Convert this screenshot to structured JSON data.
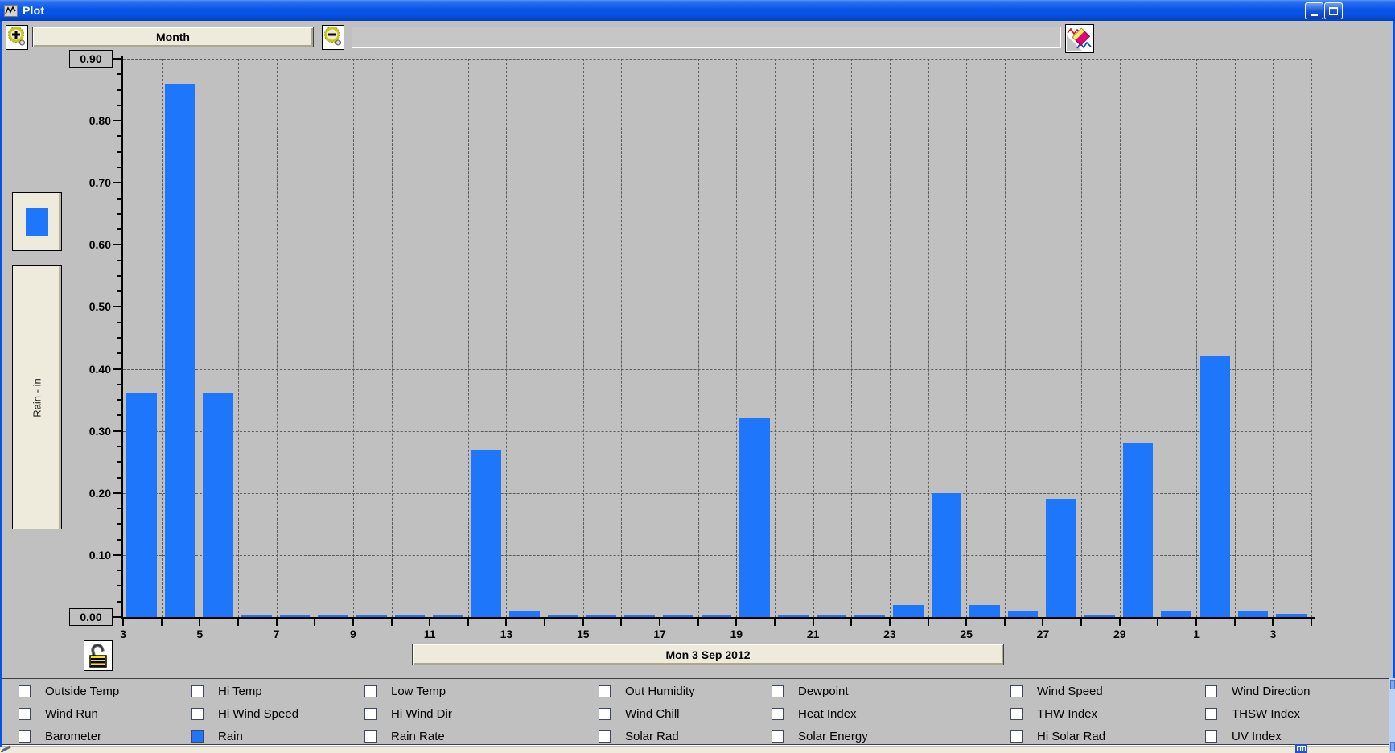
{
  "window": {
    "title": "Plot"
  },
  "toolbar": {
    "month_label": "Month",
    "span_value": "",
    "zoom_in_icon": "magnifier-plus",
    "zoom_out_icon": "magnifier-minus",
    "erase_icon": "eraser"
  },
  "chart_data": {
    "type": "bar",
    "title": "",
    "ylabel": "Rain - in",
    "xlabel": "",
    "period": "Month",
    "date_label": "Mon 3 Sep 2012",
    "ylim": [
      0,
      0.9
    ],
    "grid": true,
    "series_color": "#1E77FB",
    "y_ticks": [
      "0.90",
      "0.80",
      "0.70",
      "0.60",
      "0.50",
      "0.40",
      "0.30",
      "0.20",
      "0.10",
      "0.00"
    ],
    "categories": [
      "3",
      "4",
      "5",
      "6",
      "7",
      "8",
      "9",
      "10",
      "11",
      "12",
      "13",
      "14",
      "15",
      "16",
      "17",
      "18",
      "19",
      "20",
      "21",
      "22",
      "23",
      "24",
      "25",
      "26",
      "27",
      "28",
      "29",
      "30",
      "1",
      "2",
      "3"
    ],
    "values": [
      0.36,
      0.86,
      0.36,
      0,
      0,
      0,
      0,
      0,
      0,
      0.27,
      0.01,
      0,
      0,
      0,
      0,
      0,
      0.32,
      0,
      0,
      0,
      0.02,
      0.2,
      0.02,
      0.01,
      0.19,
      0,
      0.28,
      0.01,
      0.42,
      0.01,
      0.005
    ],
    "x_tick_labels": [
      "3",
      "5",
      "7",
      "9",
      "11",
      "13",
      "15",
      "17",
      "19",
      "21",
      "23",
      "25",
      "27",
      "29",
      "1",
      "3"
    ],
    "legend": [
      {
        "name": "Rain",
        "color": "#1E77FB"
      }
    ]
  },
  "checkboxes": {
    "items": [
      {
        "label": "Outside Temp",
        "checked": false
      },
      {
        "label": "Hi Temp",
        "checked": false
      },
      {
        "label": "Low Temp",
        "checked": false
      },
      {
        "label": "Out Humidity",
        "checked": false
      },
      {
        "label": "Dewpoint",
        "checked": false
      },
      {
        "label": "Wind Speed",
        "checked": false
      },
      {
        "label": "Wind Direction",
        "checked": false
      },
      {
        "label": "Wind Run",
        "checked": false
      },
      {
        "label": "Hi Wind Speed",
        "checked": false
      },
      {
        "label": "Hi Wind Dir",
        "checked": false
      },
      {
        "label": "Wind Chill",
        "checked": false
      },
      {
        "label": "Heat Index",
        "checked": false
      },
      {
        "label": "THW Index",
        "checked": false
      },
      {
        "label": "THSW Index",
        "checked": false
      },
      {
        "label": "Barometer",
        "checked": false
      },
      {
        "label": "Rain",
        "checked": true
      },
      {
        "label": "Rain Rate",
        "checked": false
      },
      {
        "label": "Solar Rad",
        "checked": false
      },
      {
        "label": "Solar Energy",
        "checked": false
      },
      {
        "label": "Hi Solar Rad",
        "checked": false
      },
      {
        "label": "UV Index",
        "checked": false
      }
    ]
  },
  "colors": {
    "accent_blue": "#1E77FB",
    "titlebar_blue": "#0653E9",
    "window_gray": "#C0C0C0",
    "beige": "#EFEBDC"
  }
}
